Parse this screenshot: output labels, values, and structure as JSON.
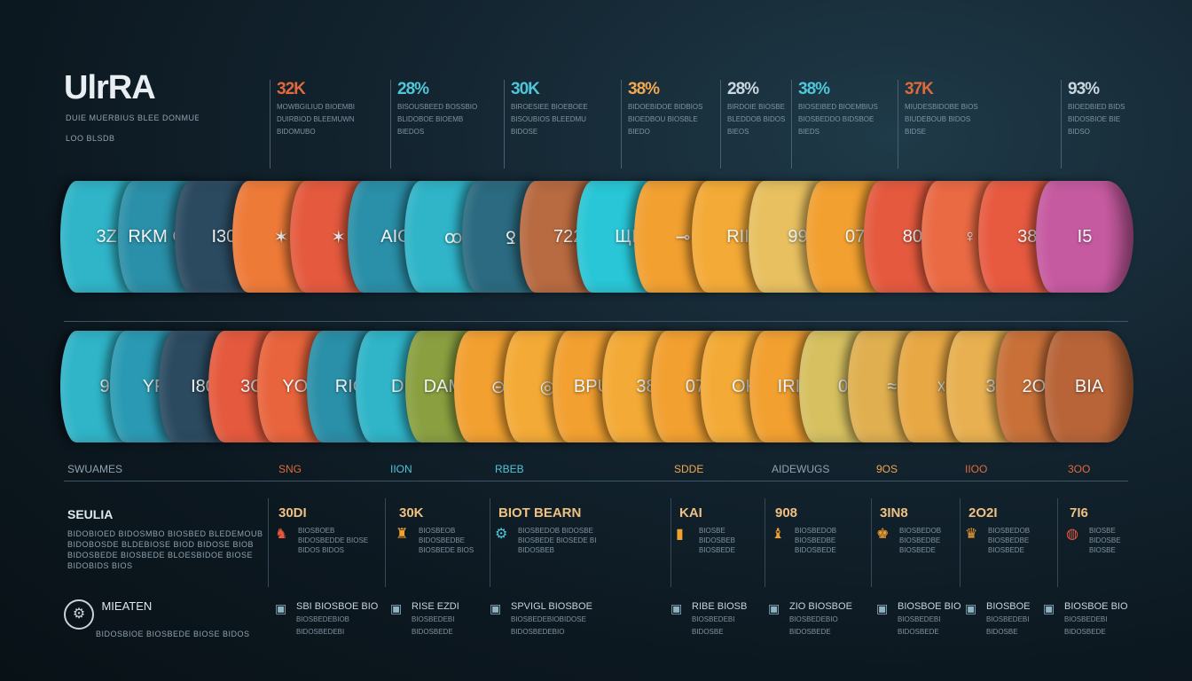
{
  "header": {
    "title": "UlrRA",
    "subtitle1": "DUIE MUERBIUS BLEE DONMUER",
    "subtitle2": "LOO BLSDB"
  },
  "top_stats": [
    {
      "value": "32K",
      "color": "#e06a3c",
      "lines": [
        "MOWBGILIUD BIOEMBI",
        "DUIRBIOD BLEEMUWN",
        "BIDOMUBO"
      ]
    },
    {
      "value": "28%",
      "color": "#4fc6d8",
      "lines": [
        "BISOUSBEED BOSSBIO",
        "BLIDOBOE BIOEMB",
        "BIEDOS"
      ]
    },
    {
      "value": "30K",
      "color": "#4fc6d8",
      "lines": [
        "BIROESIEE BIOEBOEE",
        "BISOUBIOS BLEEDMU",
        "BIDOSE"
      ]
    },
    {
      "value": "38%",
      "color": "#f0a850",
      "lines": [
        "BIDOEBIDOE BIDBIOS",
        "BIOEDBOU BIOSBLE",
        "BIEDO"
      ]
    },
    {
      "value": "28%",
      "color": "#c9d6df",
      "lines": [
        "BIRDOIE BIOSBE",
        "BLEDDOB BIDOS",
        "BIEOS"
      ]
    },
    {
      "value": "38%",
      "color": "#4fc6d8",
      "lines": [
        "BIOSEIBED BIOEMBIUS",
        "BIOSBEDDO BIDSBOE",
        "BIEDS"
      ]
    },
    {
      "value": "37K",
      "color": "#e06a3c",
      "lines": [
        "MIUDESBIDOBE BIOS",
        "BIUDEBOUB BIDOS",
        "BIDSE"
      ]
    },
    {
      "value": "93%",
      "color": "#c9d6df",
      "lines": [
        "BIOEDBIED BIDS",
        "BIDOSBIOE BIE",
        "BIDSO"
      ]
    }
  ],
  "row1": [
    {
      "label": "3ZI",
      "color": "#2fb4c8"
    },
    {
      "label": "RKM OOI",
      "color": "#2a8fa8"
    },
    {
      "label": "I30",
      "color": "#2b4a60"
    },
    {
      "label": "✶",
      "color": "#ee7a38"
    },
    {
      "label": "✶",
      "color": "#e55a3e"
    },
    {
      "label": "AIO",
      "color": "#2a8fa8"
    },
    {
      "label": "ꝏ",
      "color": "#2fb4c8"
    },
    {
      "label": "Ꝿ",
      "color": "#2b6a80"
    },
    {
      "label": "722",
      "color": "#b86a40"
    },
    {
      "label": "ЩI",
      "color": "#28c6d6"
    },
    {
      "label": "⊸",
      "color": "#f2a030"
    },
    {
      "label": "RIII",
      "color": "#f4aa36"
    },
    {
      "label": "99",
      "color": "#e8c060"
    },
    {
      "label": "07",
      "color": "#f2a030"
    },
    {
      "label": "80",
      "color": "#e55a3e"
    },
    {
      "label": "♀",
      "color": "#ea6a44"
    },
    {
      "label": "38",
      "color": "#e85a40"
    },
    {
      "label": "I5",
      "color": "#c65aa0"
    }
  ],
  "row2": [
    {
      "label": "9",
      "color": "#2fb4c8"
    },
    {
      "label": "YF",
      "color": "#2a9ab4"
    },
    {
      "label": "I80",
      "color": "#2b4a60"
    },
    {
      "label": "3O",
      "color": "#e55a3e"
    },
    {
      "label": "YOC",
      "color": "#e8643c"
    },
    {
      "label": "RIO",
      "color": "#2a8fa8"
    },
    {
      "label": "DI",
      "color": "#2fb4c8"
    },
    {
      "label": "DAMB",
      "color": "#8aa040"
    },
    {
      "label": "⊝",
      "color": "#f2a030"
    },
    {
      "label": "◎",
      "color": "#f4aa36"
    },
    {
      "label": "BPUL",
      "color": "#f2a030"
    },
    {
      "label": "38",
      "color": "#f4aa36"
    },
    {
      "label": "07",
      "color": "#f2a030"
    },
    {
      "label": "OK",
      "color": "#f4aa36"
    },
    {
      "label": "IRIII",
      "color": "#f2a030"
    },
    {
      "label": "0",
      "color": "#d6c060"
    },
    {
      "label": "≈",
      "color": "#e0b050"
    },
    {
      "label": "☓",
      "color": "#e8a844"
    },
    {
      "label": "3",
      "color": "#e8b050"
    },
    {
      "label": "2OE",
      "color": "#c87038"
    },
    {
      "label": "BIA",
      "color": "#b86438"
    }
  ],
  "axis_labels": [
    {
      "text": "SWUAMES",
      "color": "#8fa3b0"
    },
    {
      "text": "SNG",
      "color": "#e06a3c"
    },
    {
      "text": "IION",
      "color": "#4fc6d8"
    },
    {
      "text": "RBEB",
      "color": "#4fc6d8"
    },
    {
      "text": "SDDE",
      "color": "#f0a850"
    },
    {
      "text": "AIDEWUGS",
      "color": "#8fa3b0"
    },
    {
      "text": "9OS",
      "color": "#f0a850"
    },
    {
      "text": "IIOO",
      "color": "#e06a3c"
    },
    {
      "text": "3OO",
      "color": "#e06a3c"
    }
  ],
  "left_card": {
    "title": "SEULIA",
    "lines": [
      "BIDOBIOED BIDOSMBO BIOSBED BLEDEMOUB",
      "BIDOBOSDE BLDEBIOSE BIOD BIDOSE BIOB",
      "BIDOSBEDE BIOSBEDE BLOESBIDOE BIOSE",
      "BIDOBIDS BIOS"
    ]
  },
  "cards": [
    {
      "value": "30DI",
      "icon": "♞",
      "icon_color": "#e55a3e",
      "lines": [
        "BIOSBOEB",
        "BIDOSBEDDE BIOSE",
        "BIDOS BIDOS"
      ]
    },
    {
      "value": "30K",
      "icon": "♜",
      "icon_color": "#f2a030",
      "lines": [
        "BIOSBEOB",
        "BIDOSBEDBE",
        "BIOSBEDE BIOS"
      ]
    },
    {
      "value": "BIOT BEARN",
      "icon": "⚙",
      "icon_color": "#4fc6d8",
      "lines": [
        "BIOSBEDOB BIDOSBE",
        "BIOSBEDE BIOSEDE BI",
        "BIDOSBEB"
      ]
    },
    {
      "value": "KAI",
      "icon": "▮",
      "icon_color": "#f2a030",
      "lines": [
        "BIOSBE",
        "BIDOSBEB",
        "BIOSBEDE"
      ]
    },
    {
      "value": "908",
      "icon": "♝",
      "icon_color": "#f2a030",
      "lines": [
        "BIOSBEDOB",
        "BIOSBEDBE",
        "BIDOSBEDE"
      ]
    },
    {
      "value": "3IN8",
      "icon": "♚",
      "icon_color": "#f2a030",
      "lines": [
        "BIOSBEDOB",
        "BIOSBEDBE",
        "BIOSBEDE"
      ]
    },
    {
      "value": "2O2I",
      "icon": "♛",
      "icon_color": "#f2a030",
      "lines": [
        "BIOSBEDOB",
        "BIOSBEDBE",
        "BIOSBEDE"
      ]
    },
    {
      "value": "7I6",
      "icon": "◍",
      "icon_color": "#e55a3e",
      "lines": [
        "BIOSBE",
        "BIDOSBE",
        "BIOSBE"
      ]
    }
  ],
  "footer": {
    "title": "MIEATEN",
    "lines": [
      "BIDOSBIOE BIOSBEDE BIOSE BIDOS"
    ],
    "items": [
      {
        "title": "SBI BIOSBOE BIO",
        "lines": [
          "BIOSBEDEBIOB",
          "BIDOSBEDEBI"
        ]
      },
      {
        "title": "RISE EZDI",
        "lines": [
          "BIOSBEDEBI",
          "BIDOSBEDE"
        ]
      },
      {
        "title": "SPVIGL BIOSBOE",
        "lines": [
          "BIOSBEDEBIOBIDOSE",
          "BIDOSBEDEBIO"
        ]
      },
      {
        "title": "RIBE BIOSB",
        "lines": [
          "BIOSBEDEBI",
          "BIDOSBE"
        ]
      },
      {
        "title": "ZIO BIOSBOE",
        "lines": [
          "BIOSBEDEBIO",
          "BIDOSBEDE"
        ]
      },
      {
        "title": "BIOSBOE BIO",
        "lines": [
          "BIOSBEDEBI",
          "BIDOSBEDE"
        ]
      },
      {
        "title": "BIOSBOE",
        "lines": [
          "BIOSBEDEBI",
          "BIDOSBE"
        ]
      },
      {
        "title": "BIOSBOE BIO",
        "lines": [
          "BIOSBEDEBI",
          "BIDOSBEDE"
        ]
      }
    ]
  }
}
